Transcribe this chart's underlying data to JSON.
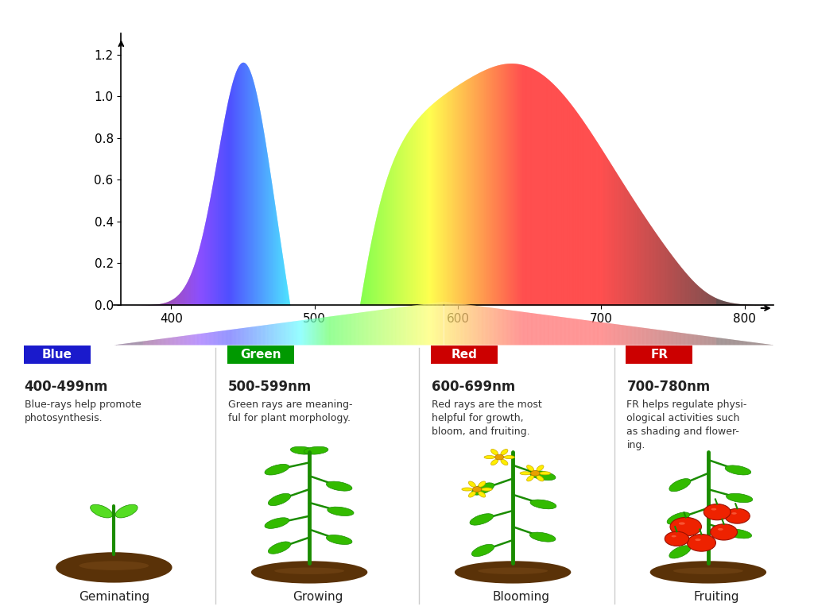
{
  "x_min": 360,
  "x_max": 820,
  "y_min": 0.0,
  "y_max": 1.3,
  "x_ticks": [
    400,
    500,
    600,
    700,
    800
  ],
  "y_ticks": [
    0.0,
    0.2,
    0.4,
    0.6,
    0.8,
    1.0,
    1.2
  ],
  "categories": [
    {
      "label": "Blue",
      "range": "400-499nm",
      "description": "Blue-rays help promote\nphotosynthesis.",
      "stage": "Geminating",
      "badge_color": "#1a1acc"
    },
    {
      "label": "Green",
      "range": "500-599nm",
      "description": "Green rays are meaning-\nful for plant morphology.",
      "stage": "Growing",
      "badge_color": "#009900"
    },
    {
      "label": "Red",
      "range": "600-699nm",
      "description": "Red rays are the most\nhelpful for growth,\nbloom, and fruiting.",
      "stage": "Blooming",
      "badge_color": "#cc0000"
    },
    {
      "label": "FR",
      "range": "700-780nm",
      "description": "FR helps regulate physi-\nological activities such\nas shading and flower-\ning.",
      "stage": "Fruiting",
      "badge_color": "#cc0000"
    }
  ],
  "divider_color": "#cccccc",
  "text_color": "#222222",
  "bg_color": "#ffffff"
}
